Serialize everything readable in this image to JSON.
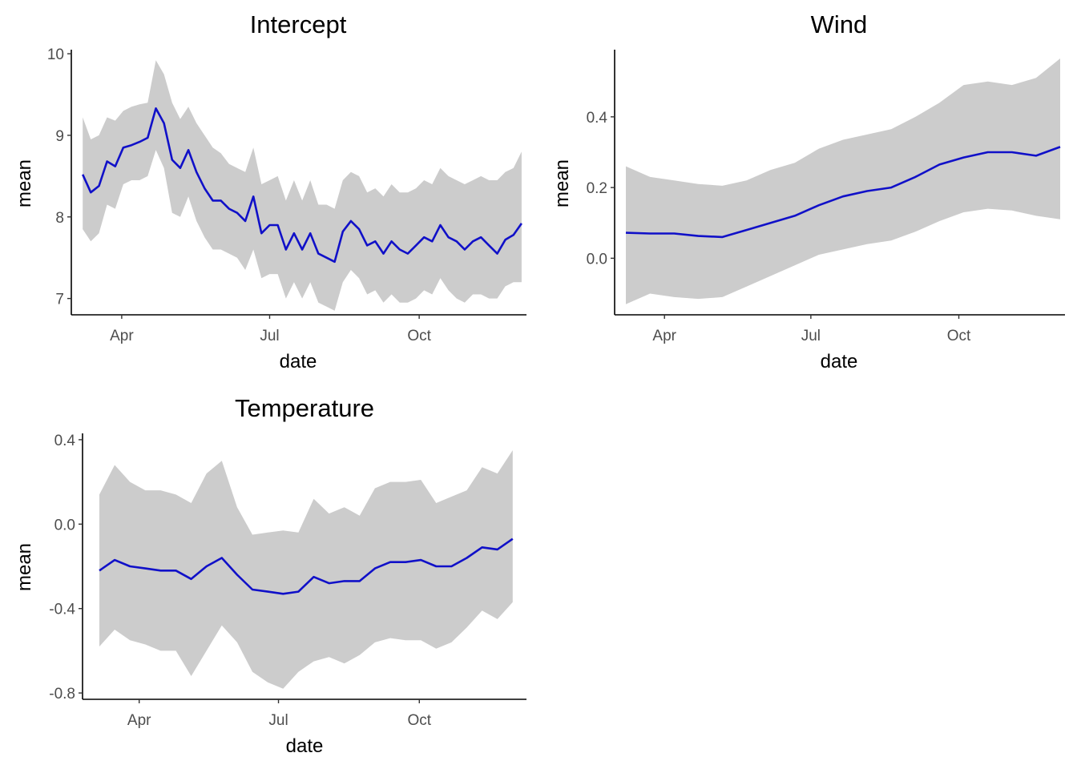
{
  "colors": {
    "band": "#cccccc",
    "mean_line": "#1010c8",
    "axis": "#000000",
    "tick_text": "#4d4d4d"
  },
  "chart_data": [
    {
      "type": "area",
      "title": "Intercept",
      "xlabel": "date",
      "ylabel": "mean",
      "x_ticks": [
        "Apr",
        "Jul",
        "Oct"
      ],
      "y_ticks": [
        "7",
        "8",
        "9",
        "10"
      ],
      "xlim": [
        "2023-03-01",
        "2023-12-06"
      ],
      "ylim": [
        6.8,
        10.05
      ],
      "grid": false,
      "series": [
        {
          "role": "mean",
          "x": [
            "2023-03-08",
            "2023-03-13",
            "2023-03-18",
            "2023-03-23",
            "2023-03-28",
            "2023-04-02",
            "2023-04-07",
            "2023-04-12",
            "2023-04-17",
            "2023-04-22",
            "2023-04-27",
            "2023-05-02",
            "2023-05-07",
            "2023-05-12",
            "2023-05-17",
            "2023-05-22",
            "2023-05-27",
            "2023-06-01",
            "2023-06-06",
            "2023-06-11",
            "2023-06-16",
            "2023-06-21",
            "2023-06-26",
            "2023-07-01",
            "2023-07-06",
            "2023-07-11",
            "2023-07-16",
            "2023-07-21",
            "2023-07-26",
            "2023-07-31",
            "2023-08-05",
            "2023-08-10",
            "2023-08-15",
            "2023-08-20",
            "2023-08-25",
            "2023-08-30",
            "2023-09-04",
            "2023-09-09",
            "2023-09-14",
            "2023-09-19",
            "2023-09-24",
            "2023-09-29",
            "2023-10-04",
            "2023-10-09",
            "2023-10-14",
            "2023-10-19",
            "2023-10-24",
            "2023-10-29",
            "2023-11-03",
            "2023-11-08",
            "2023-11-13",
            "2023-11-18",
            "2023-11-23",
            "2023-11-28",
            "2023-12-03"
          ],
          "values": [
            8.52,
            8.3,
            8.38,
            8.68,
            8.62,
            8.85,
            8.88,
            8.92,
            8.97,
            9.33,
            9.15,
            8.7,
            8.6,
            8.82,
            8.55,
            8.35,
            8.2,
            8.2,
            8.1,
            8.05,
            7.95,
            8.25,
            7.8,
            7.9,
            7.9,
            7.6,
            7.8,
            7.6,
            7.8,
            7.55,
            7.5,
            7.45,
            7.82,
            7.95,
            7.85,
            7.65,
            7.7,
            7.55,
            7.7,
            7.6,
            7.55,
            7.65,
            7.75,
            7.7,
            7.9,
            7.75,
            7.7,
            7.6,
            7.7,
            7.75,
            7.65,
            7.55,
            7.72,
            7.78,
            7.92
          ]
        },
        {
          "role": "upper",
          "x": [
            "2023-03-08",
            "2023-03-13",
            "2023-03-18",
            "2023-03-23",
            "2023-03-28",
            "2023-04-02",
            "2023-04-07",
            "2023-04-12",
            "2023-04-17",
            "2023-04-22",
            "2023-04-27",
            "2023-05-02",
            "2023-05-07",
            "2023-05-12",
            "2023-05-17",
            "2023-05-22",
            "2023-05-27",
            "2023-06-01",
            "2023-06-06",
            "2023-06-11",
            "2023-06-16",
            "2023-06-21",
            "2023-06-26",
            "2023-07-01",
            "2023-07-06",
            "2023-07-11",
            "2023-07-16",
            "2023-07-21",
            "2023-07-26",
            "2023-07-31",
            "2023-08-05",
            "2023-08-10",
            "2023-08-15",
            "2023-08-20",
            "2023-08-25",
            "2023-08-30",
            "2023-09-04",
            "2023-09-09",
            "2023-09-14",
            "2023-09-19",
            "2023-09-24",
            "2023-09-29",
            "2023-10-04",
            "2023-10-09",
            "2023-10-14",
            "2023-10-19",
            "2023-10-24",
            "2023-10-29",
            "2023-11-03",
            "2023-11-08",
            "2023-11-13",
            "2023-11-18",
            "2023-11-23",
            "2023-11-28",
            "2023-12-03"
          ],
          "values": [
            9.22,
            8.95,
            9.0,
            9.22,
            9.18,
            9.3,
            9.35,
            9.38,
            9.4,
            9.92,
            9.75,
            9.4,
            9.2,
            9.35,
            9.15,
            9.0,
            8.85,
            8.78,
            8.65,
            8.6,
            8.55,
            8.85,
            8.4,
            8.45,
            8.5,
            8.2,
            8.45,
            8.2,
            8.45,
            8.15,
            8.15,
            8.1,
            8.45,
            8.55,
            8.5,
            8.3,
            8.35,
            8.25,
            8.4,
            8.3,
            8.3,
            8.35,
            8.45,
            8.4,
            8.6,
            8.5,
            8.45,
            8.4,
            8.45,
            8.5,
            8.45,
            8.45,
            8.55,
            8.6,
            8.8
          ]
        },
        {
          "role": "lower",
          "x": [
            "2023-03-08",
            "2023-03-13",
            "2023-03-18",
            "2023-03-23",
            "2023-03-28",
            "2023-04-02",
            "2023-04-07",
            "2023-04-12",
            "2023-04-17",
            "2023-04-22",
            "2023-04-27",
            "2023-05-02",
            "2023-05-07",
            "2023-05-12",
            "2023-05-17",
            "2023-05-22",
            "2023-05-27",
            "2023-06-01",
            "2023-06-06",
            "2023-06-11",
            "2023-06-16",
            "2023-06-21",
            "2023-06-26",
            "2023-07-01",
            "2023-07-06",
            "2023-07-11",
            "2023-07-16",
            "2023-07-21",
            "2023-07-26",
            "2023-07-31",
            "2023-08-05",
            "2023-08-10",
            "2023-08-15",
            "2023-08-20",
            "2023-08-25",
            "2023-08-30",
            "2023-09-04",
            "2023-09-09",
            "2023-09-14",
            "2023-09-19",
            "2023-09-24",
            "2023-09-29",
            "2023-10-04",
            "2023-10-09",
            "2023-10-14",
            "2023-10-19",
            "2023-10-24",
            "2023-10-29",
            "2023-11-03",
            "2023-11-08",
            "2023-11-13",
            "2023-11-18",
            "2023-11-23",
            "2023-11-28",
            "2023-12-03"
          ],
          "values": [
            7.85,
            7.7,
            7.8,
            8.15,
            8.1,
            8.4,
            8.45,
            8.45,
            8.5,
            8.82,
            8.6,
            8.05,
            8.0,
            8.25,
            7.95,
            7.75,
            7.6,
            7.6,
            7.55,
            7.5,
            7.35,
            7.6,
            7.25,
            7.3,
            7.3,
            7.0,
            7.2,
            7.0,
            7.2,
            6.95,
            6.9,
            6.85,
            7.2,
            7.35,
            7.25,
            7.05,
            7.1,
            6.95,
            7.05,
            6.95,
            6.95,
            7.0,
            7.1,
            7.05,
            7.25,
            7.1,
            7.0,
            6.95,
            7.05,
            7.05,
            7.0,
            7.0,
            7.15,
            7.2,
            7.2
          ]
        }
      ]
    },
    {
      "type": "area",
      "title": "Wind",
      "xlabel": "date",
      "ylabel": "mean",
      "x_ticks": [
        "Apr",
        "Jul",
        "Oct"
      ],
      "y_ticks": [
        "0.0",
        "0.2",
        "0.4"
      ],
      "xlim": [
        "2023-03-01",
        "2023-12-06"
      ],
      "ylim": [
        -0.16,
        0.59
      ],
      "grid": false,
      "series": [
        {
          "role": "mean",
          "x": [
            "2023-03-08",
            "2023-03-23",
            "2023-04-07",
            "2023-04-22",
            "2023-05-07",
            "2023-05-22",
            "2023-06-06",
            "2023-06-21",
            "2023-07-06",
            "2023-07-21",
            "2023-08-05",
            "2023-08-20",
            "2023-09-04",
            "2023-09-19",
            "2023-10-04",
            "2023-10-19",
            "2023-11-03",
            "2023-11-18",
            "2023-12-03"
          ],
          "values": [
            0.072,
            0.07,
            0.07,
            0.063,
            0.06,
            0.08,
            0.1,
            0.12,
            0.15,
            0.175,
            0.19,
            0.2,
            0.23,
            0.265,
            0.285,
            0.3,
            0.3,
            0.29,
            0.315
          ]
        },
        {
          "role": "upper",
          "x": [
            "2023-03-08",
            "2023-03-23",
            "2023-04-07",
            "2023-04-22",
            "2023-05-07",
            "2023-05-22",
            "2023-06-06",
            "2023-06-21",
            "2023-07-06",
            "2023-07-21",
            "2023-08-05",
            "2023-08-20",
            "2023-09-04",
            "2023-09-19",
            "2023-10-04",
            "2023-10-19",
            "2023-11-03",
            "2023-11-18",
            "2023-12-03"
          ],
          "values": [
            0.26,
            0.23,
            0.22,
            0.21,
            0.205,
            0.22,
            0.25,
            0.27,
            0.31,
            0.335,
            0.35,
            0.365,
            0.4,
            0.44,
            0.49,
            0.5,
            0.49,
            0.51,
            0.565
          ]
        },
        {
          "role": "lower",
          "x": [
            "2023-03-08",
            "2023-03-23",
            "2023-04-07",
            "2023-04-22",
            "2023-05-07",
            "2023-05-22",
            "2023-06-06",
            "2023-06-21",
            "2023-07-06",
            "2023-07-21",
            "2023-08-05",
            "2023-08-20",
            "2023-09-04",
            "2023-09-19",
            "2023-10-04",
            "2023-10-19",
            "2023-11-03",
            "2023-11-18",
            "2023-12-03"
          ],
          "values": [
            -0.13,
            -0.1,
            -0.11,
            -0.115,
            -0.11,
            -0.08,
            -0.05,
            -0.02,
            0.01,
            0.025,
            0.04,
            0.05,
            0.075,
            0.105,
            0.13,
            0.14,
            0.135,
            0.12,
            0.11
          ]
        }
      ]
    },
    {
      "type": "area",
      "title": "Temperature",
      "xlabel": "date",
      "ylabel": "mean",
      "x_ticks": [
        "Apr",
        "Jul",
        "Oct"
      ],
      "y_ticks": [
        "-0.8",
        "-0.4",
        "0.0",
        "0.4"
      ],
      "xlim": [
        "2023-02-23",
        "2023-12-10"
      ],
      "ylim": [
        -0.83,
        0.43
      ],
      "grid": false,
      "series": [
        {
          "role": "mean",
          "x": [
            "2023-03-06",
            "2023-03-16",
            "2023-03-26",
            "2023-04-05",
            "2023-04-15",
            "2023-04-25",
            "2023-05-05",
            "2023-05-15",
            "2023-05-25",
            "2023-06-04",
            "2023-06-14",
            "2023-06-24",
            "2023-07-04",
            "2023-07-14",
            "2023-07-24",
            "2023-08-03",
            "2023-08-13",
            "2023-08-23",
            "2023-09-02",
            "2023-09-12",
            "2023-09-22",
            "2023-10-02",
            "2023-10-12",
            "2023-10-22",
            "2023-11-01",
            "2023-11-11",
            "2023-11-21",
            "2023-12-01"
          ],
          "values": [
            -0.22,
            -0.17,
            -0.2,
            -0.21,
            -0.22,
            -0.22,
            -0.26,
            -0.2,
            -0.16,
            -0.24,
            -0.31,
            -0.32,
            -0.33,
            -0.32,
            -0.25,
            -0.28,
            -0.27,
            -0.27,
            -0.21,
            -0.18,
            -0.18,
            -0.17,
            -0.2,
            -0.2,
            -0.16,
            -0.11,
            -0.12,
            -0.07
          ]
        },
        {
          "role": "upper",
          "x": [
            "2023-03-06",
            "2023-03-16",
            "2023-03-26",
            "2023-04-05",
            "2023-04-15",
            "2023-04-25",
            "2023-05-05",
            "2023-05-15",
            "2023-05-25",
            "2023-06-04",
            "2023-06-14",
            "2023-06-24",
            "2023-07-04",
            "2023-07-14",
            "2023-07-24",
            "2023-08-03",
            "2023-08-13",
            "2023-08-23",
            "2023-09-02",
            "2023-09-12",
            "2023-09-22",
            "2023-10-02",
            "2023-10-12",
            "2023-10-22",
            "2023-11-01",
            "2023-11-11",
            "2023-11-21",
            "2023-12-01"
          ],
          "values": [
            0.14,
            0.28,
            0.2,
            0.16,
            0.16,
            0.14,
            0.1,
            0.24,
            0.3,
            0.08,
            -0.05,
            -0.04,
            -0.03,
            -0.04,
            0.12,
            0.05,
            0.08,
            0.04,
            0.17,
            0.2,
            0.2,
            0.21,
            0.1,
            0.13,
            0.16,
            0.27,
            0.24,
            0.35
          ]
        },
        {
          "role": "lower",
          "x": [
            "2023-03-06",
            "2023-03-16",
            "2023-03-26",
            "2023-04-05",
            "2023-04-15",
            "2023-04-25",
            "2023-05-05",
            "2023-05-15",
            "2023-05-25",
            "2023-06-04",
            "2023-06-14",
            "2023-06-24",
            "2023-07-04",
            "2023-07-14",
            "2023-07-24",
            "2023-08-03",
            "2023-08-13",
            "2023-08-23",
            "2023-09-02",
            "2023-09-12",
            "2023-09-22",
            "2023-10-02",
            "2023-10-12",
            "2023-10-22",
            "2023-11-01",
            "2023-11-11",
            "2023-11-21",
            "2023-12-01"
          ],
          "values": [
            -0.58,
            -0.5,
            -0.55,
            -0.57,
            -0.6,
            -0.6,
            -0.72,
            -0.6,
            -0.48,
            -0.56,
            -0.7,
            -0.75,
            -0.78,
            -0.7,
            -0.65,
            -0.63,
            -0.66,
            -0.62,
            -0.56,
            -0.54,
            -0.55,
            -0.55,
            -0.59,
            -0.56,
            -0.49,
            -0.41,
            -0.45,
            -0.37
          ]
        }
      ]
    }
  ]
}
